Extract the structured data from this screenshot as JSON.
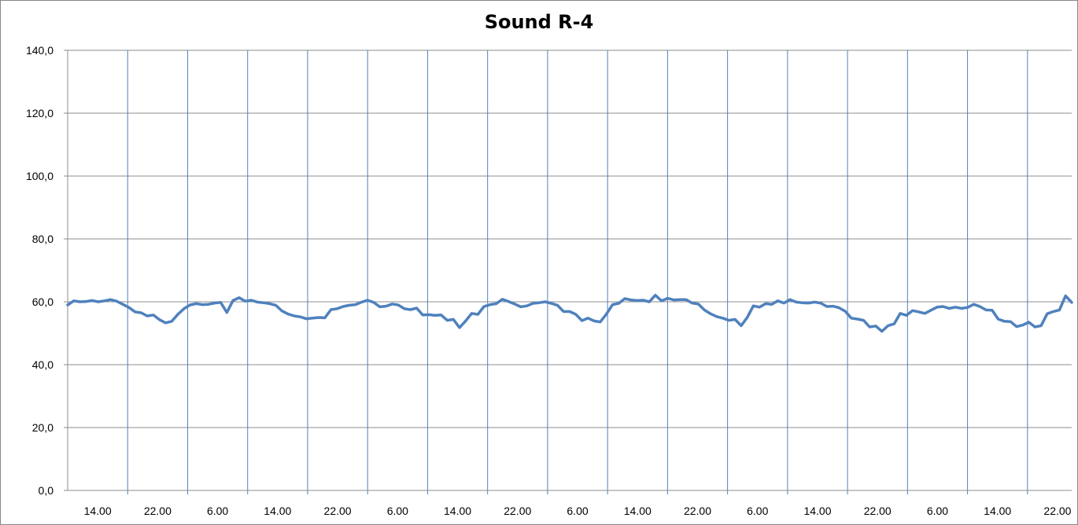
{
  "chart_data": {
    "type": "line",
    "title": "Sound R-4",
    "xlabel": "",
    "ylabel": "",
    "ylim": [
      0,
      140
    ],
    "yticks": [
      "0,0",
      "20,0",
      "40,0",
      "60,0",
      "80,0",
      "100,0",
      "120,0",
      "140,0"
    ],
    "xticks": [
      "14.00",
      "22.00",
      "6.00",
      "14.00",
      "22.00",
      "6.00",
      "14.00",
      "22.00",
      "6.00",
      "14.00",
      "22.00",
      "6.00",
      "14.00",
      "22.00",
      "6.00",
      "14.00",
      "22.00",
      "6.00",
      "14.00",
      "22.00"
    ],
    "grid": {
      "horizontal": true,
      "vertical": true
    },
    "legend": "none",
    "colors": {
      "line": "#4f81bd",
      "grid_vertical": "#4f81bd",
      "grid_horizontal": "#8c8c8c",
      "axis": "#8c8c8c"
    },
    "series": [
      {
        "values": [
          59.0,
          60.3,
          60.0,
          60.1,
          60.4,
          60.0,
          60.3,
          60.7,
          60.2,
          59.2,
          58.2,
          56.8,
          56.5,
          55.5,
          55.8,
          54.3,
          53.3,
          53.8,
          56.0,
          57.8,
          59.0,
          59.4,
          59.1,
          59.2,
          59.6,
          59.8,
          56.6,
          60.4,
          61.3,
          60.2,
          60.5,
          59.9,
          59.7,
          59.4,
          58.9,
          57.1,
          56.1,
          55.5,
          55.2,
          54.6,
          54.8,
          55.0,
          54.9,
          57.5,
          57.8,
          58.5,
          58.9,
          59.1,
          59.9,
          60.5,
          59.8,
          58.4,
          58.6,
          59.3,
          59.0,
          57.8,
          57.5,
          58.0,
          55.8,
          55.9,
          55.7,
          55.8,
          54.1,
          54.4,
          51.8,
          53.9,
          56.3,
          56.0,
          58.5,
          59.1,
          59.4,
          60.8,
          60.1,
          59.3,
          58.4,
          58.7,
          59.5,
          59.7,
          60.0,
          59.5,
          58.9,
          56.9,
          56.9,
          56.0,
          54.0,
          54.8,
          53.9,
          53.6,
          56.1,
          59.1,
          59.5,
          61.0,
          60.6,
          60.4,
          60.5,
          60.0,
          62.1,
          60.3,
          61.1,
          60.6,
          60.7,
          60.7,
          59.6,
          59.3,
          57.4,
          56.2,
          55.3,
          54.8,
          54.1,
          54.4,
          52.4,
          55.0,
          58.7,
          58.3,
          59.4,
          59.2,
          60.3,
          59.6,
          60.7,
          59.9,
          59.7,
          59.6,
          59.9,
          59.6,
          58.5,
          58.6,
          58.1,
          57.0,
          54.8,
          54.5,
          54.1,
          52.0,
          52.3,
          50.6,
          52.4,
          53.0,
          56.3,
          55.7,
          57.2,
          56.8,
          56.3,
          57.3,
          58.3,
          58.5,
          57.9,
          58.3,
          57.9,
          58.2,
          59.2,
          58.5,
          57.4,
          57.3,
          54.5,
          53.8,
          53.7,
          52.1,
          52.6,
          53.5,
          52.0,
          52.4,
          56.2,
          56.9,
          57.4,
          61.9,
          59.8
        ]
      }
    ]
  }
}
